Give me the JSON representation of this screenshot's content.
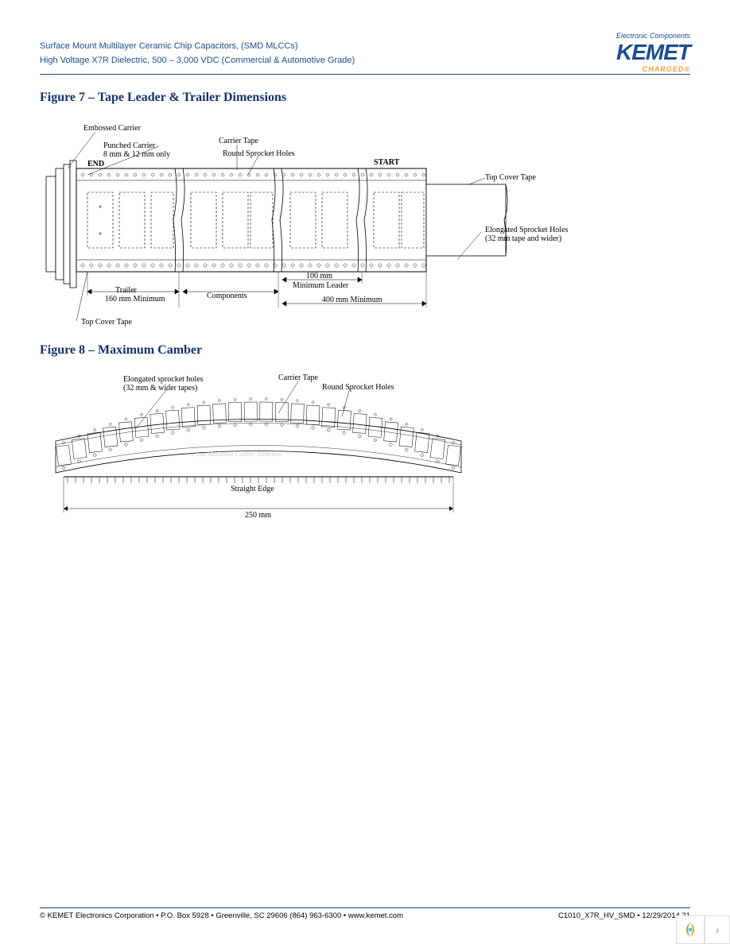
{
  "header": {
    "line1": "Surface Mount Multilayer Ceramic Chip Capacitors, (SMD MLCCs)",
    "line2": "High Voltage X7R Dielectric, 500 – 3,000 VDC (Commercial & Automotive Grade)",
    "logo_tag": "Electronic Components",
    "logo_main": "KEMET",
    "logo_sub": "CHARGED",
    "logo_reg": "®"
  },
  "figure7": {
    "title": "Figure 7 – Tape Leader & Trailer Dimensions",
    "labels": {
      "embossed_carrier": "Embossed Carrier",
      "punched_carrier": "Punched Carrier",
      "punched_carrier2": "8 mm & 12 mm only",
      "end": "END",
      "carrier_tape": "Carrier Tape",
      "round_sprocket": "Round Sprocket Holes",
      "start": "START",
      "top_cover_tape": "Top Cover Tape",
      "elongated": "Elongated Sprocket Holes",
      "elongated2": "(32 mm tape and wider)",
      "trailer": "Trailer",
      "trailer2": "160 mm Minimum",
      "components": "Components",
      "leader_100": "100 mm",
      "leader_min": "Minimum Leader",
      "leader_400": "400 mm Minimum",
      "top_cover_tape2": "Top Cover Tape"
    }
  },
  "figure8": {
    "title": "Figure 8 – Maximum Camber",
    "labels": {
      "elongated": "Elongated sprocket holes",
      "elongated2": "(32 mm & wider tapes)",
      "carrier_tape": "Carrier Tape",
      "round_sprocket": "Round Sprocket Holes",
      "camber_note": "1 mm Maximum Camber distortion",
      "straight_edge": "Straight Edge",
      "length": "250 mm"
    }
  },
  "footer": {
    "left": "© KEMET Electronics Corporation • P.O. Box 5928 • Greenville, SC 29606 (864) 963-6300 • www.kemet.com",
    "right": "C1010_X7R_HV_SMD • 12/29/2014 21"
  },
  "colors": {
    "brand_blue": "#1a4d8f",
    "title_blue": "#14326e",
    "orange": "#f0a030"
  }
}
